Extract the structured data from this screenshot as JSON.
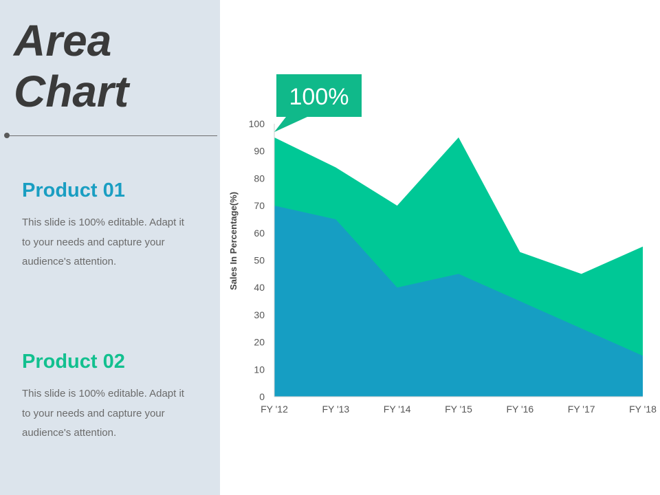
{
  "slide": {
    "title_line1": "Area",
    "title_line2": "Chart"
  },
  "products": [
    {
      "heading": "Product 01",
      "color": "#1a9ec2",
      "description": "This slide is 100% editable. Adapt it to your needs and capture your audience's attention."
    },
    {
      "heading": "Product 02",
      "color": "#12c08f",
      "description": "This slide is 100% editable. Adapt it to your needs and capture your audience's attention."
    }
  ],
  "chart_data": {
    "type": "area",
    "stacked": false,
    "categories": [
      "FY '12",
      "FY '13",
      "FY '14",
      "FY '15",
      "FY '16",
      "FY '17",
      "FY '18"
    ],
    "series": [
      {
        "name": "Product 02",
        "color": "#00c896",
        "values": [
          95,
          84,
          70,
          95,
          53,
          45,
          55
        ]
      },
      {
        "name": "Product 01",
        "color": "#169ec3",
        "values": [
          70,
          65,
          40,
          45,
          35,
          25,
          15
        ]
      }
    ],
    "ylabel": "Sales In Percentage(%)",
    "xlabel": "",
    "ylim": [
      0,
      100
    ],
    "yticks": [
      0,
      10,
      20,
      30,
      40,
      50,
      60,
      70,
      80,
      90,
      100
    ],
    "grid": false,
    "callout": {
      "text": "100%",
      "color": "#10b98a"
    }
  }
}
